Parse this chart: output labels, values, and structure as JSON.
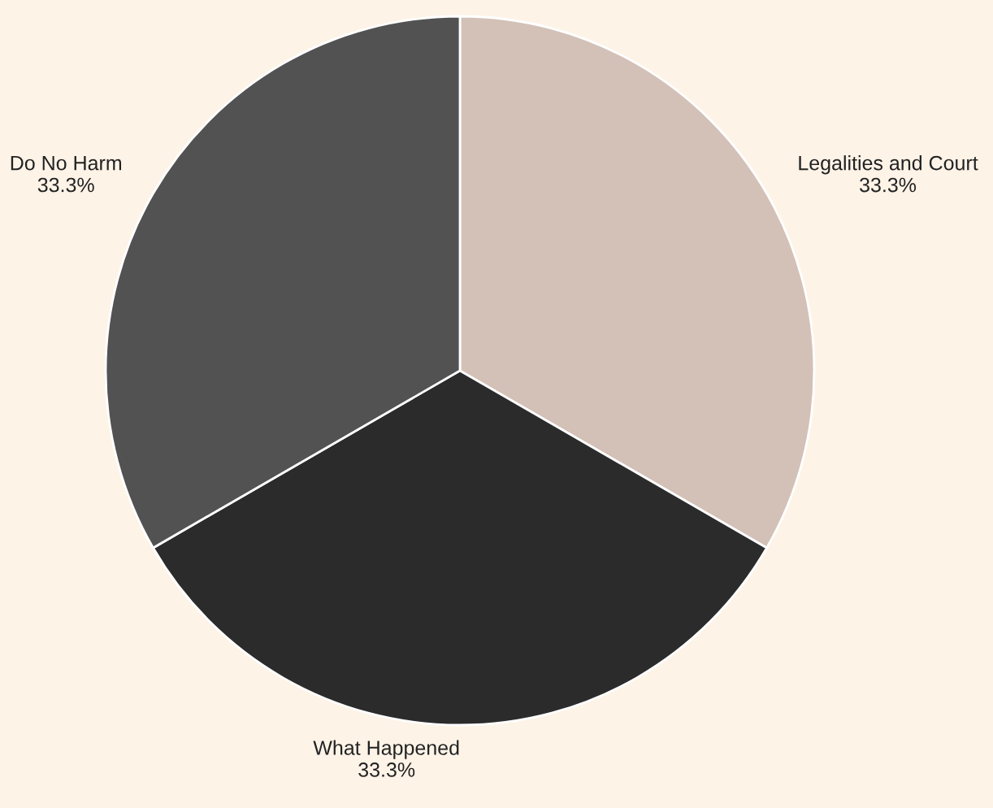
{
  "chart_data": {
    "type": "pie",
    "categories": [
      "Legalities and Court",
      "What Happened",
      "Do No Harm"
    ],
    "values": [
      33.3,
      33.3,
      33.3
    ],
    "value_labels": [
      "33.3%",
      "33.3%",
      "33.3%"
    ],
    "colors": [
      "#d3c1b8",
      "#2b2b2b",
      "#525252"
    ],
    "legend": false
  }
}
